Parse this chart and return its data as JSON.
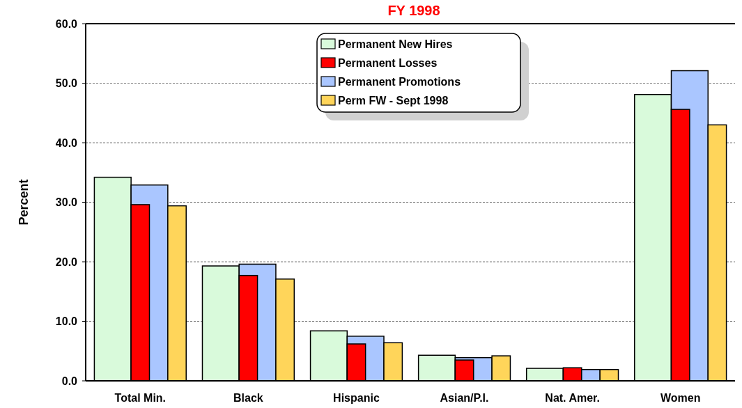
{
  "chart_data": {
    "type": "bar",
    "title": "FY 1998",
    "ylabel": "Percent",
    "categories": [
      "Total Min.",
      "Black",
      "Hispanic",
      "Asian/P.I.",
      "Nat. Amer.",
      "Women"
    ],
    "series": [
      {
        "name": "Permanent New Hires",
        "color": "#d9fadb",
        "values": [
          34.2,
          19.3,
          8.4,
          4.3,
          2.1,
          48.1
        ]
      },
      {
        "name": "Permanent Losses",
        "color": "#ff0000",
        "values": [
          29.6,
          17.7,
          6.2,
          3.5,
          2.2,
          45.6
        ]
      },
      {
        "name": "Permanent Promotions",
        "color": "#aac6ff",
        "values": [
          32.9,
          19.6,
          7.5,
          3.9,
          1.9,
          52.1
        ]
      },
      {
        "name": "Perm FW - Sept 1998",
        "color": "#ffd55a",
        "values": [
          29.4,
          17.1,
          6.4,
          4.2,
          1.9,
          43.0
        ]
      }
    ],
    "ylim": [
      0,
      60
    ],
    "yticks": [
      {
        "value": 0,
        "label": "0.0"
      },
      {
        "value": 10,
        "label": "10.0"
      },
      {
        "value": 20,
        "label": "20.0"
      },
      {
        "value": 30,
        "label": "30.0"
      },
      {
        "value": 40,
        "label": "40.0"
      },
      {
        "value": 50,
        "label": "50.0"
      },
      {
        "value": 60,
        "label": "60.0"
      }
    ],
    "grid": "y",
    "legend": "top"
  }
}
